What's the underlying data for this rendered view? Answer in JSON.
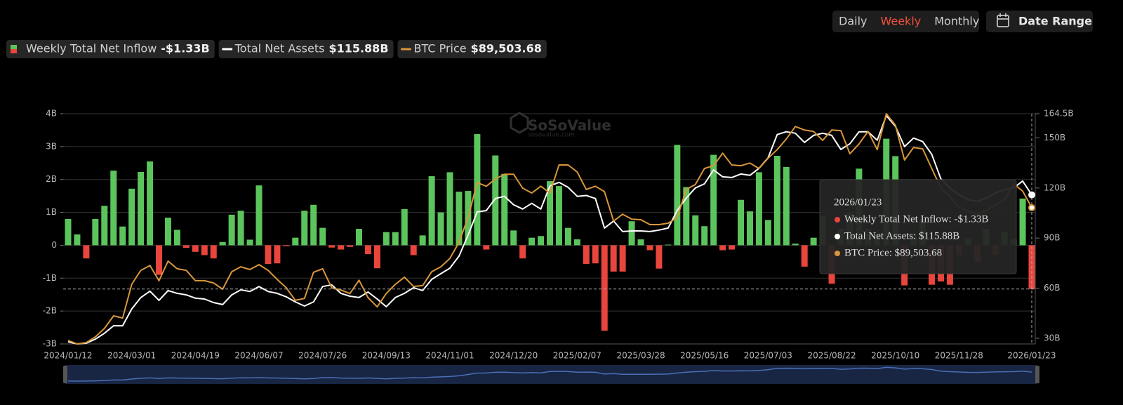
{
  "controls": {
    "periods": [
      "Daily",
      "Weekly",
      "Monthly"
    ],
    "active_period": 1,
    "date_range": "Date Range"
  },
  "watermark": {
    "brand": "SoSoValue",
    "site": "sosovalue.com"
  },
  "tooltip": {
    "title": "2026/01/23",
    "lines": [
      "Weekly Total Net Inflow: -$1.33B",
      "Total Net Assets: $115.88B",
      "BTC Price: $89,503.68"
    ]
  },
  "chart_data": {
    "type": "bar",
    "categories": [
      "2024/01/12",
      null,
      null,
      null,
      null,
      null,
      null,
      "2024/03/01",
      null,
      null,
      null,
      null,
      null,
      null,
      "2024/04/19",
      null,
      null,
      null,
      null,
      null,
      null,
      "2024/06/07",
      null,
      null,
      null,
      null,
      null,
      null,
      "2024/07/26",
      null,
      null,
      null,
      null,
      null,
      null,
      "2024/09/13",
      null,
      null,
      null,
      null,
      null,
      null,
      "2024/11/01",
      null,
      null,
      null,
      null,
      null,
      null,
      "2024/12/20",
      null,
      null,
      null,
      null,
      null,
      null,
      "2025/02/07",
      null,
      null,
      null,
      null,
      null,
      null,
      "2025/03/28",
      null,
      null,
      null,
      null,
      null,
      null,
      "2025/05/16",
      null,
      null,
      null,
      null,
      null,
      null,
      "2025/07/03",
      null,
      null,
      null,
      null,
      null,
      null,
      "2025/08/22",
      null,
      null,
      null,
      null,
      null,
      null,
      "2025/10/10",
      null,
      null,
      null,
      null,
      null,
      null,
      "2025/11/28",
      null,
      null,
      null,
      null,
      null,
      null,
      null,
      "2026/01/23"
    ],
    "series": [
      {
        "name": "Weekly Total Net Inflow",
        "latest_label": "-$1.33B",
        "type": "bar",
        "color": "#5cc45c",
        "negative_color": "#e8453c",
        "values": [
          0.8,
          0.33,
          -0.4,
          0.8,
          1.2,
          2.27,
          0.57,
          1.72,
          2.23,
          2.55,
          -0.9,
          0.84,
          0.47,
          -0.08,
          -0.2,
          -0.3,
          -0.4,
          0.1,
          0.93,
          1.05,
          0.17,
          1.82,
          -0.57,
          -0.55,
          -0.03,
          0.23,
          1.05,
          1.23,
          0.53,
          -0.07,
          -0.13,
          -0.05,
          0.5,
          -0.27,
          -0.7,
          0.4,
          0.4,
          1.1,
          -0.3,
          0.3,
          2.1,
          1.0,
          2.22,
          1.63,
          1.65,
          3.38,
          -0.13,
          2.73,
          2.17,
          0.45,
          -0.4,
          0.23,
          0.28,
          1.95,
          1.8,
          0.53,
          0.18,
          -0.57,
          -0.55,
          -2.6,
          -0.8,
          -0.8,
          0.73,
          0.18,
          -0.15,
          -0.71,
          0.02,
          3.05,
          1.77,
          0.91,
          0.58,
          2.75,
          -0.15,
          -0.13,
          1.38,
          1.03,
          2.22,
          0.77,
          2.72,
          2.38,
          0.05,
          -0.65,
          0.23,
          0.9,
          -1.17,
          0.5,
          1.0,
          2.33,
          0.5,
          0.3,
          3.24,
          2.71,
          -1.22,
          0.3,
          0.8,
          -1.2,
          -1.1,
          -1.2,
          -0.3,
          0.2,
          -0.5,
          0.5,
          -0.3,
          0.4,
          0.2,
          1.42,
          -1.33
        ]
      },
      {
        "name": "Total Net Assets",
        "latest_label": "$115.88B",
        "type": "line",
        "axis": "y2",
        "color": "#ffffff",
        "values": [
          27.9,
          26.6,
          27.0,
          29.5,
          33.0,
          37.5,
          37.5,
          47.6,
          54.4,
          58.2,
          52.7,
          58.6,
          56.9,
          56.0,
          54.0,
          53.5,
          51.4,
          50.2,
          56.0,
          59.0,
          58.0,
          61.0,
          58.0,
          56.9,
          54.8,
          51.8,
          49.3,
          51.8,
          61.0,
          62.0,
          56.9,
          55.2,
          54.4,
          57.7,
          53.5,
          48.9,
          54.4,
          56.9,
          60.3,
          58.6,
          65.3,
          68.7,
          72.0,
          79.2,
          91.8,
          105.7,
          106.5,
          113.7,
          115.0,
          110.0,
          107.4,
          110.8,
          107.4,
          121.3,
          123.4,
          120.4,
          115.0,
          115.5,
          113.7,
          96.0,
          100.2,
          93.9,
          94.3,
          94.3,
          93.9,
          94.8,
          96.0,
          106.5,
          114.0,
          120.0,
          122.5,
          130.9,
          126.7,
          126.3,
          128.4,
          127.6,
          131.8,
          138.1,
          152.0,
          153.7,
          152.8,
          147.3,
          151.5,
          152.8,
          151.5,
          143.1,
          146.5,
          153.7,
          153.7,
          148.6,
          163.3,
          157.0,
          144.8,
          149.9,
          147.8,
          140.2,
          125.5,
          120.0,
          116.0,
          113.0,
          112.0,
          114.0,
          117.0,
          119.0,
          120.0,
          124.2,
          115.88
        ]
      },
      {
        "name": "BTC Price",
        "latest_label": "$89,503.68",
        "type": "line",
        "axis": "y3",
        "color": "#d9963a",
        "values": [
          40800,
          39500,
          40000,
          42100,
          45200,
          49800,
          49000,
          61400,
          66500,
          68300,
          62700,
          69900,
          67100,
          66500,
          62700,
          62700,
          61900,
          59600,
          66000,
          67800,
          66800,
          68600,
          66500,
          63200,
          60100,
          55500,
          56200,
          65800,
          67100,
          60100,
          59300,
          58000,
          62900,
          56500,
          53100,
          58000,
          61400,
          64000,
          60600,
          60900,
          66000,
          67800,
          70900,
          76800,
          85900,
          98700,
          97400,
          100000,
          101800,
          101800,
          96700,
          94900,
          97400,
          94900,
          105200,
          105200,
          102600,
          96200,
          97400,
          95400,
          84600,
          87100,
          85300,
          85100,
          83300,
          83300,
          83800,
          85900,
          96200,
          98000,
          103900,
          104900,
          109500,
          105200,
          104900,
          105900,
          103900,
          107700,
          110800,
          114700,
          119300,
          118000,
          117500,
          114200,
          118000,
          117800,
          109300,
          112900,
          117500,
          110800,
          124000,
          119800,
          107000,
          111600,
          111100,
          103900,
          96700,
          93600,
          89700,
          88400,
          87100,
          88400,
          90500,
          92300,
          98200,
          95600,
          89503.68
        ]
      }
    ],
    "ylim": [
      -3,
      4
    ],
    "yticks": [
      {
        "value": -3,
        "label": "-3B"
      },
      {
        "value": -2,
        "label": "-2B"
      },
      {
        "value": -1,
        "label": "-1B"
      },
      0,
      {
        "value": 1,
        "label": "1B"
      },
      {
        "value": 2,
        "label": "2B"
      },
      {
        "value": 3,
        "label": "3B"
      },
      {
        "value": 4,
        "label": "4B"
      }
    ],
    "y2lim": [
      26.6,
      164.5
    ],
    "y2ticks": [
      {
        "value": 30,
        "label": "30B"
      },
      {
        "value": 60,
        "label": "60B"
      },
      {
        "value": 90,
        "label": "90B"
      },
      {
        "value": 120,
        "label": "120B"
      },
      {
        "value": 150,
        "label": "150B"
      },
      {
        "value": 164.5,
        "label": "164.5B"
      }
    ],
    "y3lim": [
      39500,
      124000
    ],
    "grid": true
  }
}
